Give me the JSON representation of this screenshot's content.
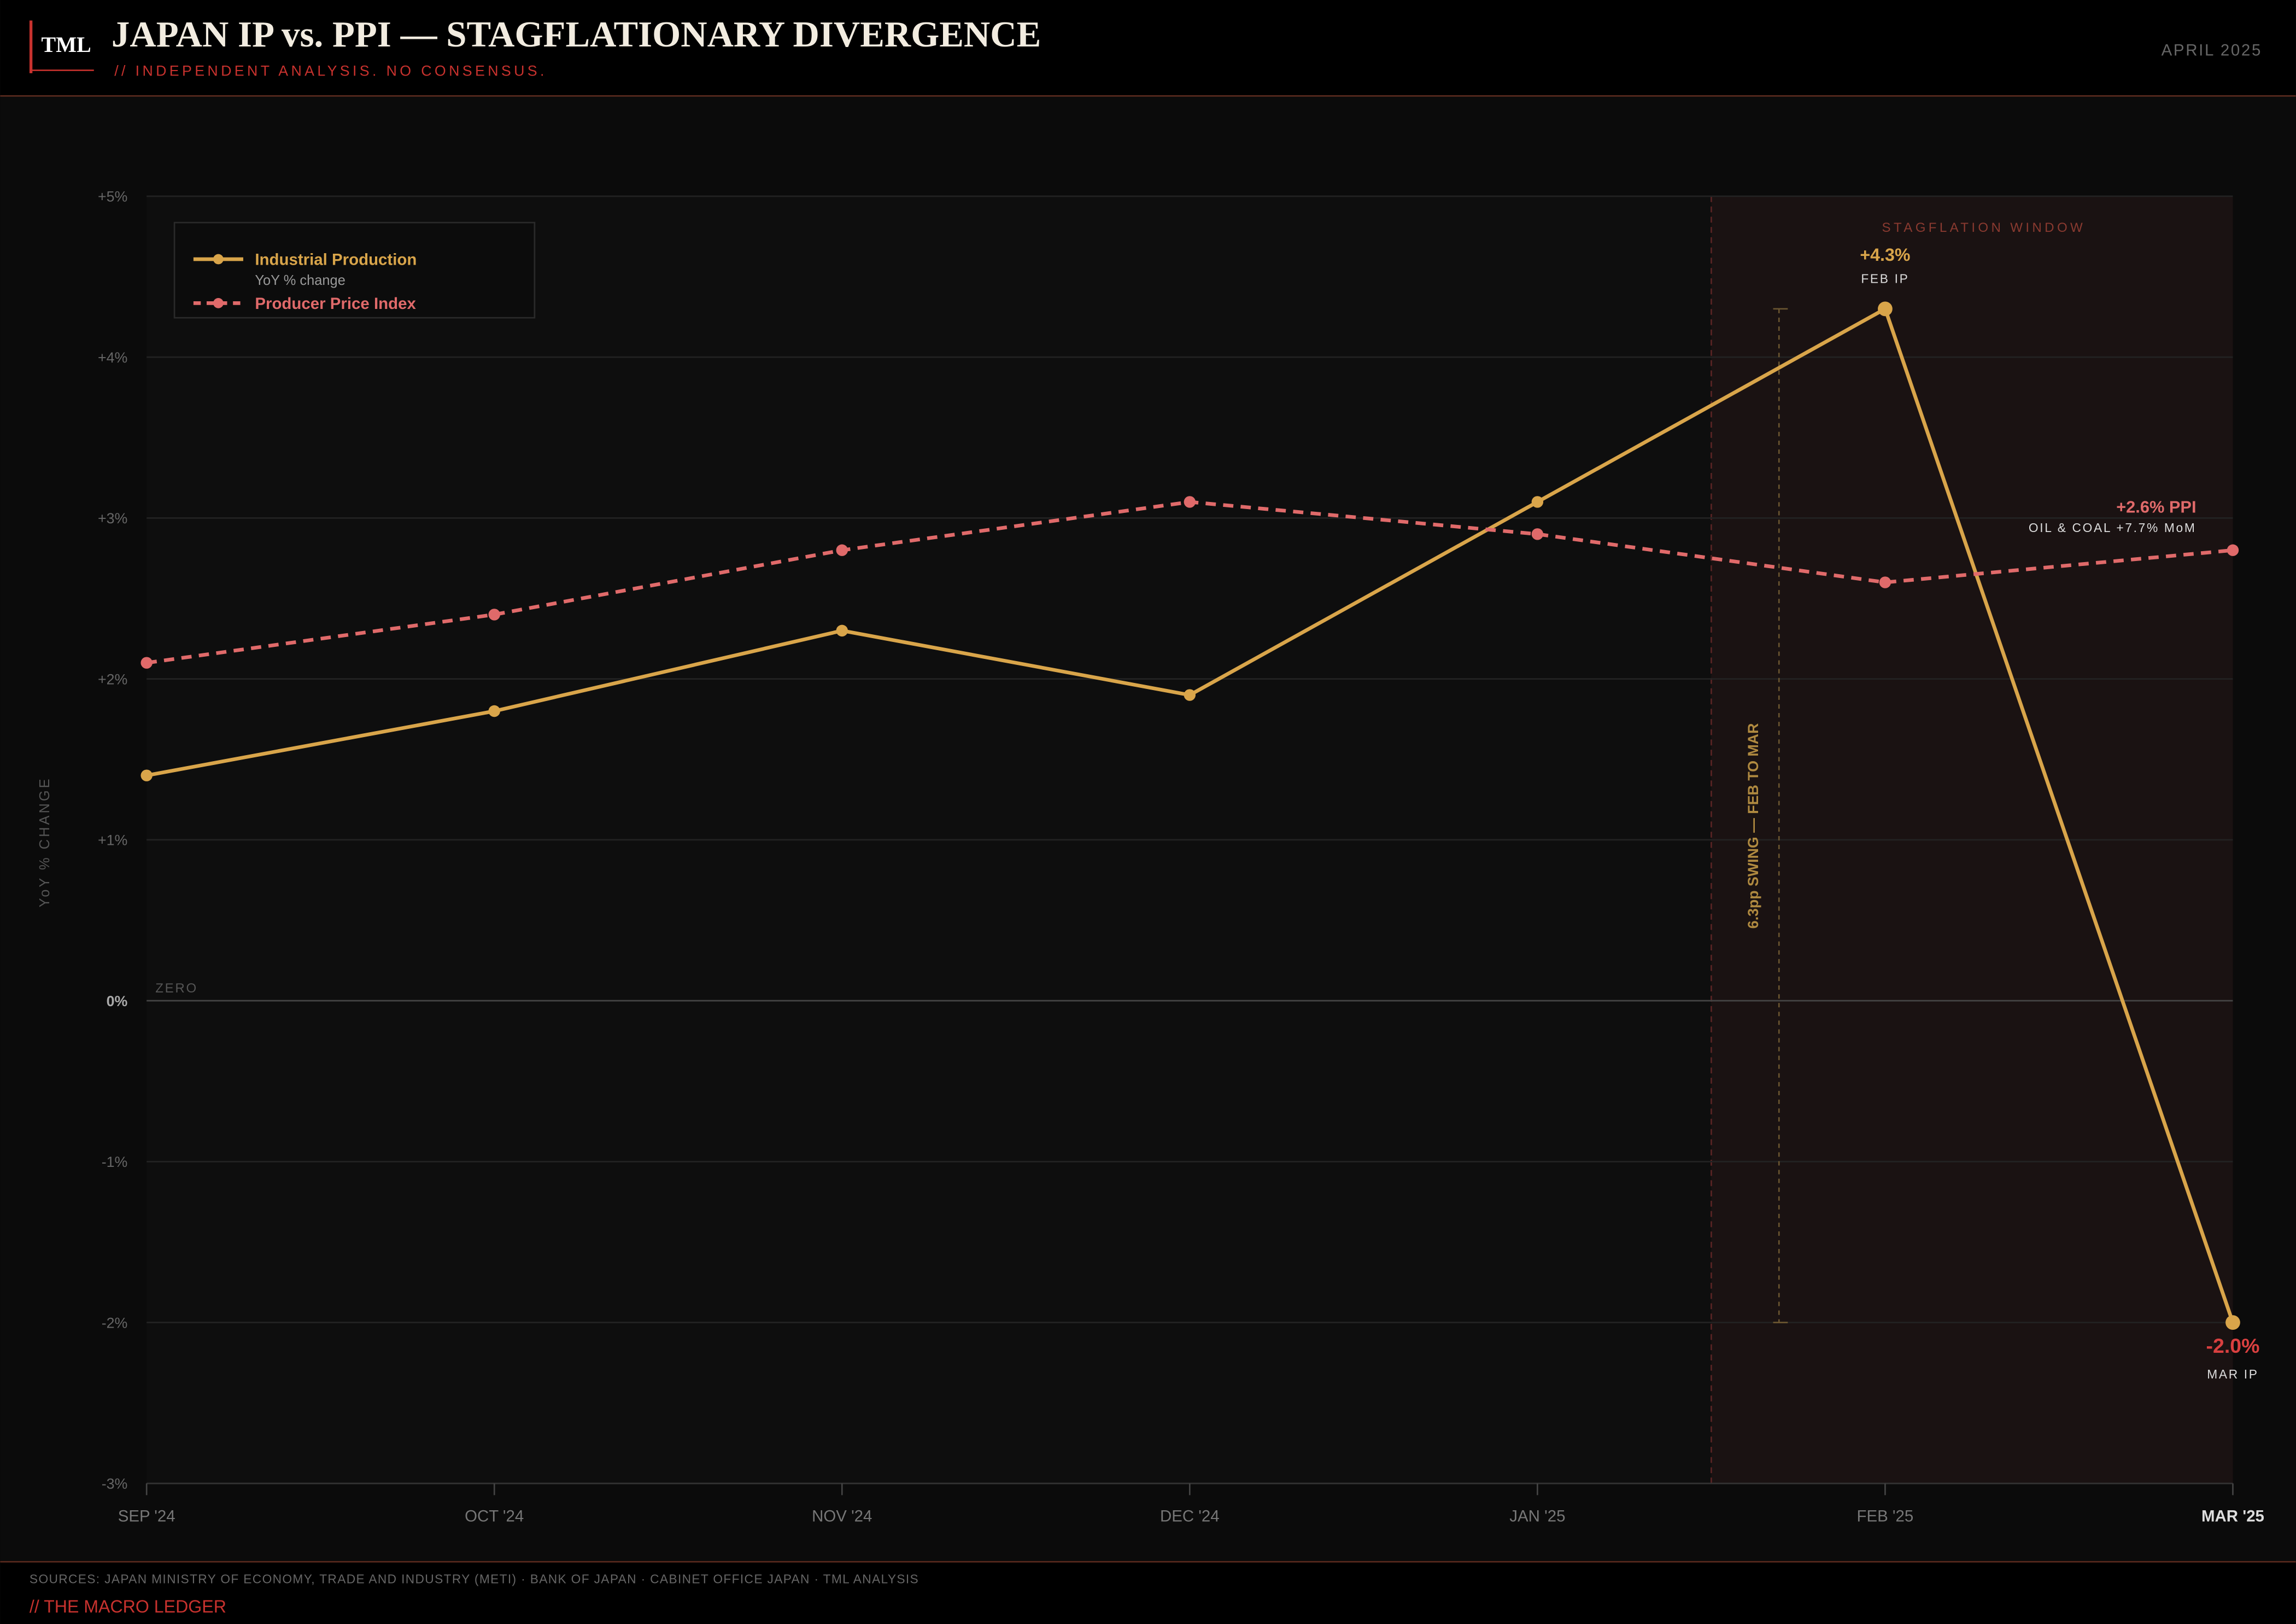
{
  "header": {
    "logo": "TML",
    "title": "JAPAN IP vs. PPI — STAGFLATIONARY DIVERGENCE",
    "subtitle": "// INDEPENDENT ANALYSIS. NO CONSENSUS.",
    "date": "APRIL 2025"
  },
  "chart_data": {
    "type": "line",
    "y_label": "YoY % CHANGE",
    "categories": [
      "SEP '24",
      "OCT '24",
      "NOV '24",
      "DEC '24",
      "JAN '25",
      "FEB '25",
      "MAR '25"
    ],
    "series": [
      {
        "name": "Industrial Production",
        "color": "#d9a54a",
        "dash": false,
        "values": [
          1.4,
          1.8,
          2.3,
          1.9,
          3.1,
          4.3,
          -2.0
        ],
        "value_labels": [
          null,
          null,
          null,
          null,
          null,
          "+4.3%",
          "-2.0%"
        ]
      },
      {
        "name": "Producer Price Index",
        "color": "#e06a6a",
        "dash": true,
        "values": [
          2.1,
          2.4,
          2.8,
          3.1,
          2.9,
          2.6,
          2.8
        ]
      }
    ],
    "legend_note": "YoY % change",
    "ylim": [
      -3,
      5
    ],
    "yticks": [
      {
        "value": -3,
        "label": "-3%"
      },
      {
        "value": -2,
        "label": "-2%"
      },
      {
        "value": -1,
        "label": "-1%"
      },
      {
        "value": 0,
        "label": "0%"
      },
      {
        "value": 1,
        "label": "+1%"
      },
      {
        "value": 2,
        "label": "+2%"
      },
      {
        "value": 3,
        "label": "+3%"
      },
      {
        "value": 4,
        "label": "+4%"
      },
      {
        "value": 5,
        "label": "+5%"
      }
    ],
    "grid": true,
    "zero_label": "ZERO",
    "window_label": "STAGFLATION WINDOW",
    "annotations": [
      "FEB IP",
      "MAR IP"
    ],
    "ppi_note": "+2.6% PPI",
    "ppi_note_detail": "OIL & COAL +7.7% MoM",
    "swing_label": "6.3pp SWING — FEB TO MAR"
  },
  "footer": {
    "sources": "SOURCES: JAPAN MINISTRY OF ECONOMY, TRADE AND INDUSTRY (METI) · BANK OF JAPAN · CABINET OFFICE JAPAN · TML ANALYSIS",
    "brand": "// THE MACRO LEDGER"
  }
}
